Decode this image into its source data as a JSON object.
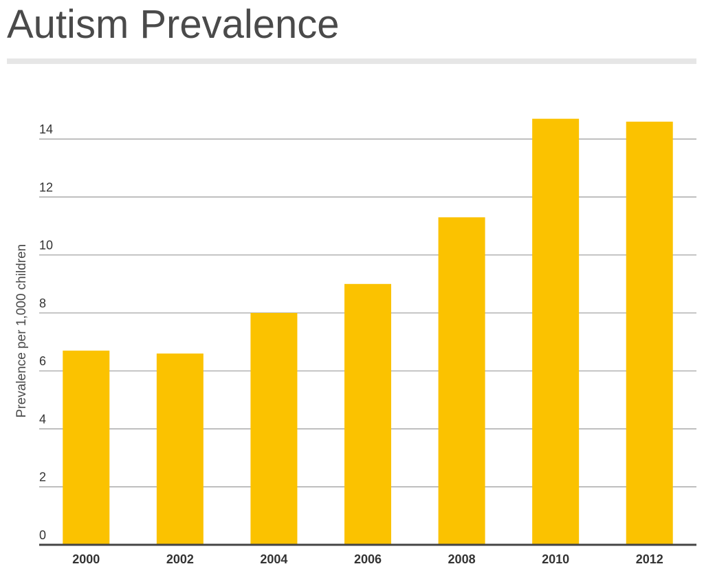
{
  "title": "Autism Prevalence",
  "colors": {
    "bar": "#fbc200",
    "grid": "#9a9a9a",
    "axis": "#444444"
  },
  "chart_data": {
    "type": "bar",
    "title": "Autism Prevalence",
    "xlabel": "",
    "ylabel": "Prevalence per 1,000 children",
    "categories": [
      "2000",
      "2002",
      "2004",
      "2006",
      "2008",
      "2010",
      "2012"
    ],
    "values": [
      6.7,
      6.6,
      8.0,
      9.0,
      11.3,
      14.7,
      14.6
    ],
    "ylim": [
      0,
      15
    ],
    "yticks": [
      0,
      2,
      4,
      6,
      8,
      10,
      12,
      14
    ],
    "grid": true,
    "legend": "none"
  }
}
